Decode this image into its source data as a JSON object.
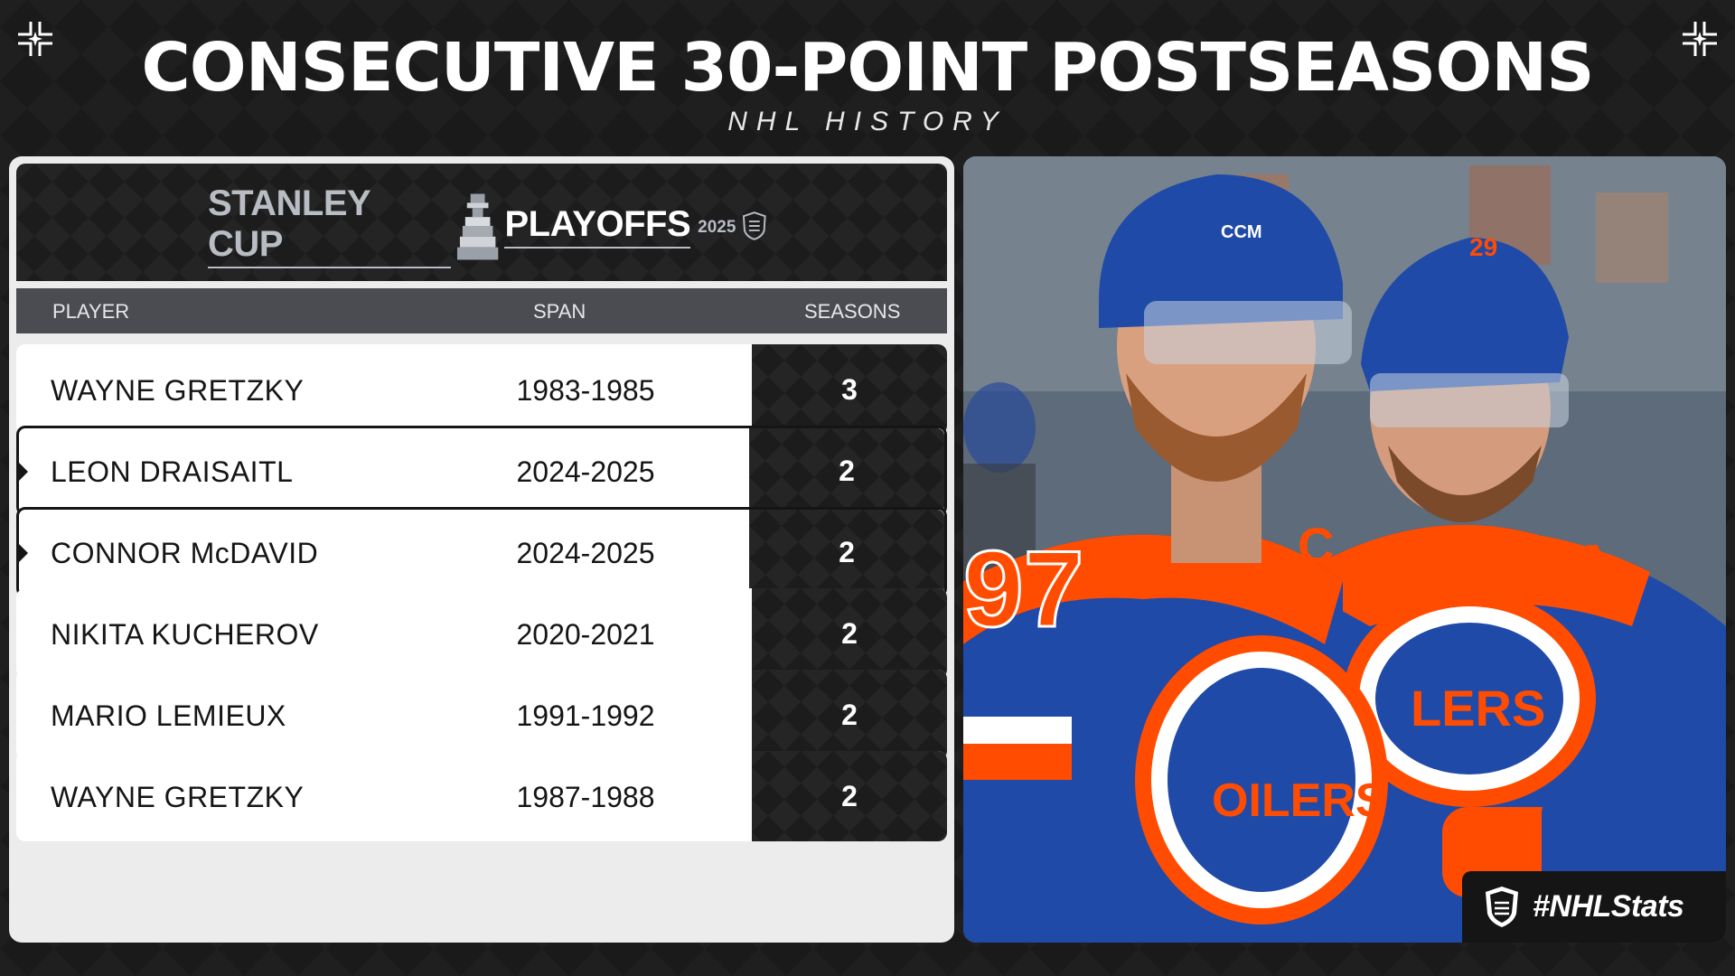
{
  "header": {
    "title": "CONSECUTIVE 30-POINT POSTSEASONS",
    "subtitle": "NHL HISTORY"
  },
  "logo": {
    "stanley": "STANLEY CUP",
    "playoffs": "PLAYOFFS",
    "year": "2025"
  },
  "table": {
    "columns": {
      "player": "PLAYER",
      "span": "SPAN",
      "seasons": "SEASONS"
    },
    "rows": [
      {
        "player": "WAYNE GRETZKY",
        "span": "1983-1985",
        "seasons": "3"
      },
      {
        "player": "LEON DRAISAITL",
        "span": "2024-2025",
        "seasons": "2"
      },
      {
        "player": "CONNOR McDAVID",
        "span": "2024-2025",
        "seasons": "2"
      },
      {
        "player": "NIKITA KUCHEROV",
        "span": "2020-2021",
        "seasons": "2"
      },
      {
        "player": "MARIO LEMIEUX",
        "span": "1991-1992",
        "seasons": "2"
      },
      {
        "player": "WAYNE GRETZKY",
        "span": "1987-1988",
        "seasons": "2"
      }
    ]
  },
  "photo": {
    "jersey_numbers": [
      "97",
      "29"
    ],
    "team_text": "OILERS"
  },
  "tag": {
    "text": "#NHLStats"
  },
  "colors": {
    "background": "#1a1a1a",
    "header_row": "#4a4c51",
    "oilers_blue": "#1f4aa8",
    "oilers_orange": "#ff4c00"
  }
}
